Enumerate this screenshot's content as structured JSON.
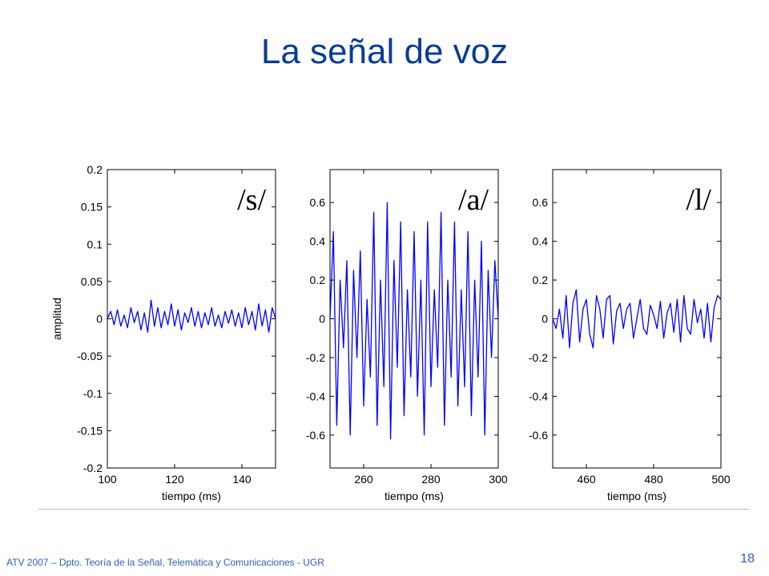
{
  "slide": {
    "title": "La señal de voz",
    "footer": "ATV 2007 – Dpto. Teoría de la Señal, Telemática y Comunicaciones - UGR",
    "page_number": "18"
  },
  "colors": {
    "title": "#0b3d91",
    "footer": "#2f5fb3",
    "signal": "#0000ff"
  },
  "chart_data": [
    {
      "type": "line",
      "label": "/s/",
      "xlabel": "tiempo (ms)",
      "ylabel": "amplitud",
      "xlim": [
        100,
        150
      ],
      "ylim": [
        -0.2,
        0.2
      ],
      "xticks": [
        100,
        120,
        140
      ],
      "yticks": [
        -0.2,
        -0.15,
        -0.1,
        -0.05,
        0,
        0.05,
        0.1,
        0.15,
        0.2
      ],
      "ytick_labels": [
        "-0.2",
        "-0.15",
        "-0.1",
        "-0.05",
        "0",
        "0.05",
        "0.1",
        "0.15",
        "0.2"
      ],
      "series": [
        {
          "x": [
            100,
            101,
            102,
            103,
            104,
            105,
            106,
            107,
            108,
            109,
            110,
            111,
            112,
            113,
            114,
            115,
            116,
            117,
            118,
            119,
            120,
            121,
            122,
            123,
            124,
            125,
            126,
            127,
            128,
            129,
            130,
            131,
            132,
            133,
            134,
            135,
            136,
            137,
            138,
            139,
            140,
            141,
            142,
            143,
            144,
            145,
            146,
            147,
            148,
            149,
            150
          ],
          "values": [
            0.0,
            0.01,
            -0.008,
            0.012,
            -0.01,
            0.005,
            -0.012,
            0.015,
            -0.005,
            0.01,
            -0.015,
            0.008,
            -0.018,
            0.025,
            -0.01,
            0.015,
            -0.012,
            0.01,
            -0.008,
            0.02,
            -0.01,
            0.012,
            -0.015,
            0.008,
            -0.005,
            0.015,
            -0.01,
            0.01,
            -0.012,
            0.008,
            -0.008,
            0.015,
            -0.01,
            0.005,
            -0.012,
            0.01,
            -0.006,
            0.012,
            -0.01,
            0.008,
            -0.012,
            0.015,
            -0.008,
            0.01,
            -0.015,
            0.02,
            -0.01,
            0.012,
            -0.018,
            0.015,
            0.0
          ]
        }
      ]
    },
    {
      "type": "line",
      "label": "/a/",
      "xlabel": "tiempo (ms)",
      "ylabel": "",
      "xlim": [
        250,
        300
      ],
      "ylim": [
        -0.77,
        0.77
      ],
      "xticks": [
        260,
        280,
        300
      ],
      "yticks": [
        -0.6,
        -0.4,
        -0.2,
        0,
        0.2,
        0.4,
        0.6
      ],
      "ytick_labels": [
        "-0.6",
        "-0.4",
        "-0.2",
        "0",
        "0.2",
        "0.4",
        "0.6"
      ],
      "series": [
        {
          "x": [
            250,
            251,
            252,
            253,
            254,
            255,
            256,
            257,
            258,
            259,
            260,
            261,
            262,
            263,
            264,
            265,
            266,
            267,
            268,
            269,
            270,
            271,
            272,
            273,
            274,
            275,
            276,
            277,
            278,
            279,
            280,
            281,
            282,
            283,
            284,
            285,
            286,
            287,
            288,
            289,
            290,
            291,
            292,
            293,
            294,
            295,
            296,
            297,
            298,
            299,
            300
          ],
          "values": [
            0.0,
            0.45,
            -0.55,
            0.2,
            -0.15,
            0.3,
            -0.6,
            0.25,
            -0.2,
            0.35,
            -0.45,
            0.1,
            -0.3,
            0.55,
            -0.55,
            0.2,
            -0.35,
            0.6,
            -0.62,
            0.3,
            -0.25,
            0.5,
            -0.5,
            0.15,
            -0.3,
            0.45,
            -0.4,
            0.2,
            -0.6,
            0.5,
            -0.35,
            0.15,
            -0.25,
            0.55,
            -0.55,
            0.2,
            -0.3,
            0.5,
            -0.45,
            0.15,
            -0.35,
            0.45,
            -0.5,
            0.2,
            -0.3,
            0.4,
            -0.6,
            0.25,
            -0.2,
            0.3,
            0.0
          ]
        }
      ]
    },
    {
      "type": "line",
      "label": "/l/",
      "xlabel": "tiempo (ms)",
      "ylabel": "",
      "xlim": [
        450,
        500
      ],
      "ylim": [
        -0.77,
        0.77
      ],
      "xticks": [
        460,
        480,
        500
      ],
      "yticks": [
        -0.6,
        -0.4,
        -0.2,
        0,
        0.2,
        0.4,
        0.6
      ],
      "ytick_labels": [
        "-0.6",
        "-0.4",
        "-0.2",
        "0",
        "0.2",
        "0.4",
        "0.6"
      ],
      "series": [
        {
          "x": [
            450,
            451,
            452,
            453,
            454,
            455,
            456,
            457,
            458,
            459,
            460,
            461,
            462,
            463,
            464,
            465,
            466,
            467,
            468,
            469,
            470,
            471,
            472,
            473,
            474,
            475,
            476,
            477,
            478,
            479,
            480,
            481,
            482,
            483,
            484,
            485,
            486,
            487,
            488,
            489,
            490,
            491,
            492,
            493,
            494,
            495,
            496,
            497,
            498,
            499,
            500
          ],
          "values": [
            0.0,
            -0.05,
            0.05,
            -0.1,
            0.12,
            -0.15,
            0.08,
            0.15,
            -0.12,
            0.05,
            0.1,
            -0.08,
            -0.15,
            0.12,
            0.05,
            -0.1,
            0.1,
            0.12,
            -0.13,
            0.04,
            0.08,
            -0.05,
            0.05,
            0.08,
            -0.1,
            0.0,
            0.1,
            -0.05,
            -0.08,
            0.07,
            0.02,
            -0.05,
            0.09,
            -0.1,
            0.03,
            0.08,
            -0.07,
            0.1,
            -0.12,
            0.12,
            -0.05,
            -0.08,
            0.1,
            -0.02,
            0.05,
            -0.1,
            0.08,
            -0.12,
            0.06,
            0.12,
            0.1
          ]
        }
      ]
    }
  ]
}
